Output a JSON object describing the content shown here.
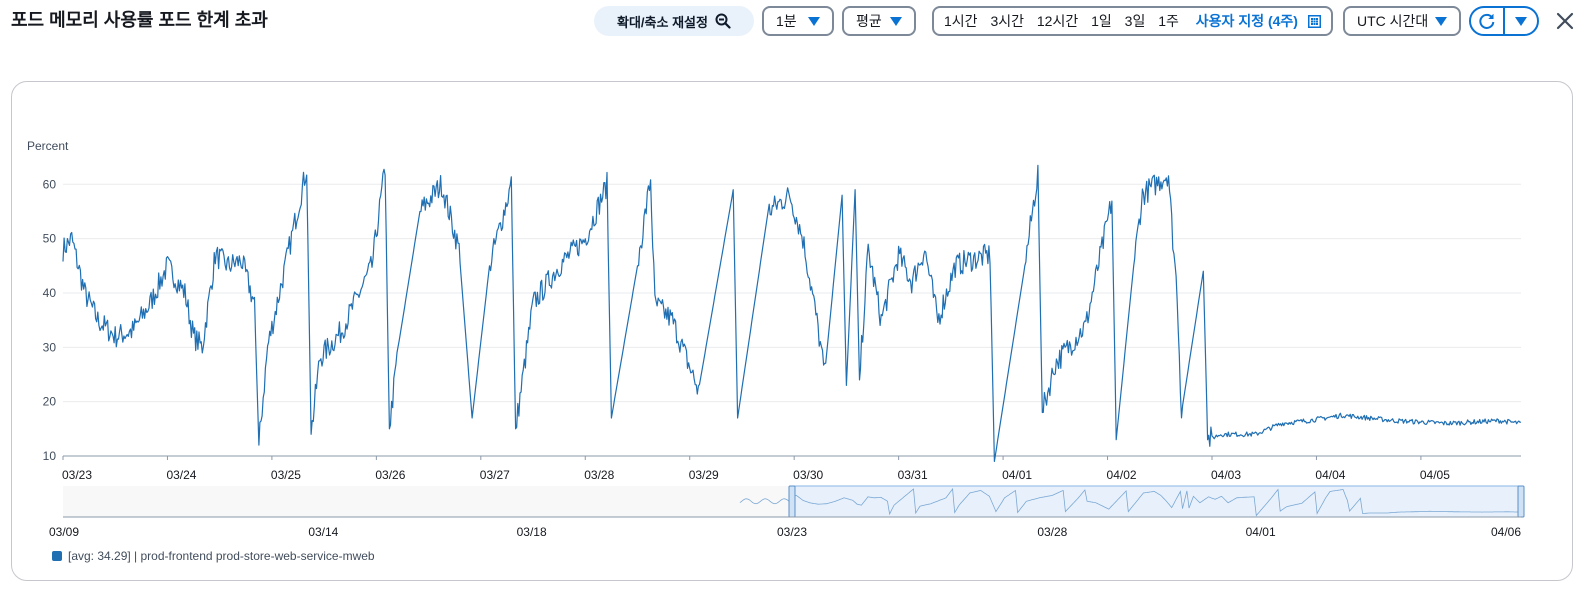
{
  "header": {
    "title": "포드 메모리 사용률 포드 한계 초과",
    "reset_zoom_label": "확대/축소 재설정",
    "period_value": "1분",
    "statistic_value": "평균",
    "time_ranges": [
      "1시간",
      "3시간",
      "12시간",
      "1일",
      "3일",
      "1주"
    ],
    "custom_range_label": "사용자 지정 (4주)",
    "timezone_value": "UTC 시간대"
  },
  "icons": [
    "zoom-out-icon",
    "caret-down-icon",
    "calendar-icon",
    "refresh-icon",
    "close-icon"
  ],
  "colors": {
    "accent": "#0972d3",
    "series": "#1f6fb2",
    "border": "#7d8998"
  },
  "chart_data": {
    "type": "line",
    "ylabel": "Percent",
    "ylim": [
      10,
      63
    ],
    "yticks": [
      10,
      20,
      30,
      40,
      50,
      60
    ],
    "x_unit": "days",
    "xlim": [
      "03/23",
      "04/05 23:00"
    ],
    "xticks": [
      "03/23",
      "03/24",
      "03/25",
      "03/26",
      "03/27",
      "03/28",
      "03/29",
      "03/30",
      "03/31",
      "04/01",
      "04/02",
      "04/03",
      "04/04",
      "04/05"
    ],
    "grid": true,
    "series": [
      {
        "name": "prod-frontend prod-store-web-service-mweb",
        "legend_label": "[avg: 34.29] | prod-frontend prod-store-web-service-mweb",
        "points": [
          [
            "03/23 00:00",
            48
          ],
          [
            "03/23 02:00",
            50
          ],
          [
            "03/23 05:00",
            40
          ],
          [
            "03/23 08:00",
            35
          ],
          [
            "03/23 12:00",
            32
          ],
          [
            "03/23 16:00",
            33
          ],
          [
            "03/23 20:00",
            38
          ],
          [
            "03/24 00:00",
            45
          ],
          [
            "03/24 04:00",
            40
          ],
          [
            "03/24 06:00",
            32
          ],
          [
            "03/24 08:00",
            30
          ],
          [
            "03/24 11:00",
            47
          ],
          [
            "03/24 14:00",
            45
          ],
          [
            "03/24 17:00",
            46
          ],
          [
            "03/24 20:00",
            38
          ],
          [
            "03/24 21:00",
            12
          ],
          [
            "03/24 23:00",
            30
          ],
          [
            "03/25 05:00",
            52
          ],
          [
            "03/25 08:00",
            63
          ],
          [
            "03/25 09:00",
            14
          ],
          [
            "03/25 11:00",
            28
          ],
          [
            "03/25 16:00",
            33
          ],
          [
            "03/25 23:00",
            45
          ],
          [
            "03/26 02:00",
            63
          ],
          [
            "03/26 03:00",
            15
          ],
          [
            "03/26 05:00",
            30
          ],
          [
            "03/26 10:00",
            55
          ],
          [
            "03/26 15:00",
            60
          ],
          [
            "03/26 19:00",
            48
          ],
          [
            "03/26 22:00",
            17
          ],
          [
            "03/27 02:00",
            45
          ],
          [
            "03/27 07:00",
            60
          ],
          [
            "03/27 08:00",
            15
          ],
          [
            "03/27 12:00",
            38
          ],
          [
            "03/27 18:00",
            45
          ],
          [
            "03/28 00:00",
            50
          ],
          [
            "03/28 05:00",
            60
          ],
          [
            "03/28 06:00",
            17
          ],
          [
            "03/28 12:00",
            45
          ],
          [
            "03/28 15:00",
            61
          ],
          [
            "03/28 16:00",
            38
          ],
          [
            "03/28 20:00",
            35
          ],
          [
            "03/29 02:00",
            22
          ],
          [
            "03/29 10:00",
            59
          ],
          [
            "03/29 11:00",
            17
          ],
          [
            "03/29 18:00",
            55
          ],
          [
            "03/29 23:00",
            58
          ],
          [
            "03/30 02:00",
            50
          ],
          [
            "03/30 05:00",
            36
          ],
          [
            "03/30 07:00",
            25
          ],
          [
            "03/30 11:00",
            58
          ],
          [
            "03/30 12:00",
            23
          ],
          [
            "03/30 14:00",
            59
          ],
          [
            "03/30 15:00",
            24
          ],
          [
            "03/30 17:00",
            48
          ],
          [
            "03/30 20:00",
            35
          ],
          [
            "03/31 00:00",
            47
          ],
          [
            "03/31 03:00",
            42
          ],
          [
            "03/31 06:00",
            48
          ],
          [
            "03/31 09:00",
            35
          ],
          [
            "03/31 13:00",
            45
          ],
          [
            "03/31 16:00",
            46
          ],
          [
            "03/31 21:00",
            47
          ],
          [
            "03/31 22:00",
            9
          ],
          [
            "04/01 05:00",
            45
          ],
          [
            "04/01 08:00",
            62
          ],
          [
            "04/01 09:00",
            18
          ],
          [
            "04/01 12:00",
            27
          ],
          [
            "04/01 19:00",
            34
          ],
          [
            "04/02 01:00",
            57
          ],
          [
            "04/02 02:00",
            13
          ],
          [
            "04/02 06:00",
            45
          ],
          [
            "04/02 08:00",
            58
          ],
          [
            "04/02 14:00",
            62
          ],
          [
            "04/02 15:00",
            50
          ],
          [
            "04/02 16:00",
            40
          ],
          [
            "04/02 17:00",
            18
          ],
          [
            "04/02 22:00",
            44
          ],
          [
            "04/02 23:00",
            13
          ],
          [
            "04/03 02:00",
            14
          ],
          [
            "04/03 10:00",
            14
          ],
          [
            "04/03 16:00",
            16
          ],
          [
            "04/03 22:00",
            16.5
          ],
          [
            "04/04 06:00",
            17.5
          ],
          [
            "04/04 12:00",
            17
          ],
          [
            "04/04 18:00",
            16.5
          ],
          [
            "04/05 06:00",
            16
          ],
          [
            "04/05 18:00",
            16.5
          ],
          [
            "04/05 23:00",
            16
          ]
        ]
      }
    ],
    "navigator": {
      "xticks": [
        "03/09",
        "03/14",
        "03/18",
        "03/23",
        "03/28",
        "04/01",
        "04/06"
      ],
      "data_start": "03/22",
      "selection": [
        "03/23",
        "04/06"
      ]
    }
  }
}
